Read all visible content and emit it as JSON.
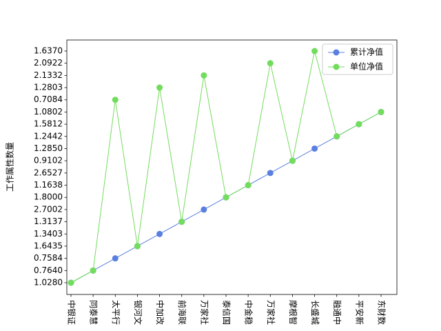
{
  "chart_data": {
    "type": "line",
    "ylabel": "工作属性数量",
    "categories": [
      "中银证",
      "同泰慧",
      "太平行",
      "银河文",
      "中加改",
      "前海联",
      "万家社",
      "泰信国",
      "中金稳",
      "万家社",
      "摩根智",
      "长盛城",
      "融通中",
      "平安新",
      "东财数"
    ],
    "ycategories": [
      "1.0280",
      "0.7640",
      "0.7584",
      "1.6435",
      "1.3403",
      "1.3137",
      "2.7002",
      "1.8000",
      "1.1638",
      "2.6527",
      "0.9102",
      "1.2850",
      "1.2442",
      "1.5812",
      "1.0802",
      "0.7084",
      "1.2803",
      "2.1332",
      "2.0922",
      "1.6370"
    ],
    "series": [
      {
        "name": "累计净值",
        "color": "#5a7fe0",
        "values": [
          "1.0280",
          "0.7640",
          "0.7584",
          "1.6435",
          "1.3403",
          "1.3137",
          "2.7002",
          "1.8000",
          "1.1638",
          "2.6527",
          "0.9102",
          "1.2850",
          "1.2442",
          "1.5812",
          "1.0802"
        ]
      },
      {
        "name": "单位净值",
        "color": "#72dc5c",
        "values": [
          "1.0280",
          "0.7640",
          "0.7084",
          "1.6435",
          "1.2803",
          "1.3137",
          "2.1332",
          "1.8000",
          "1.1638",
          "2.0922",
          "0.9102",
          "1.6370",
          "1.2442",
          "1.5812",
          "1.0802"
        ]
      }
    ],
    "legend": "upper right"
  }
}
